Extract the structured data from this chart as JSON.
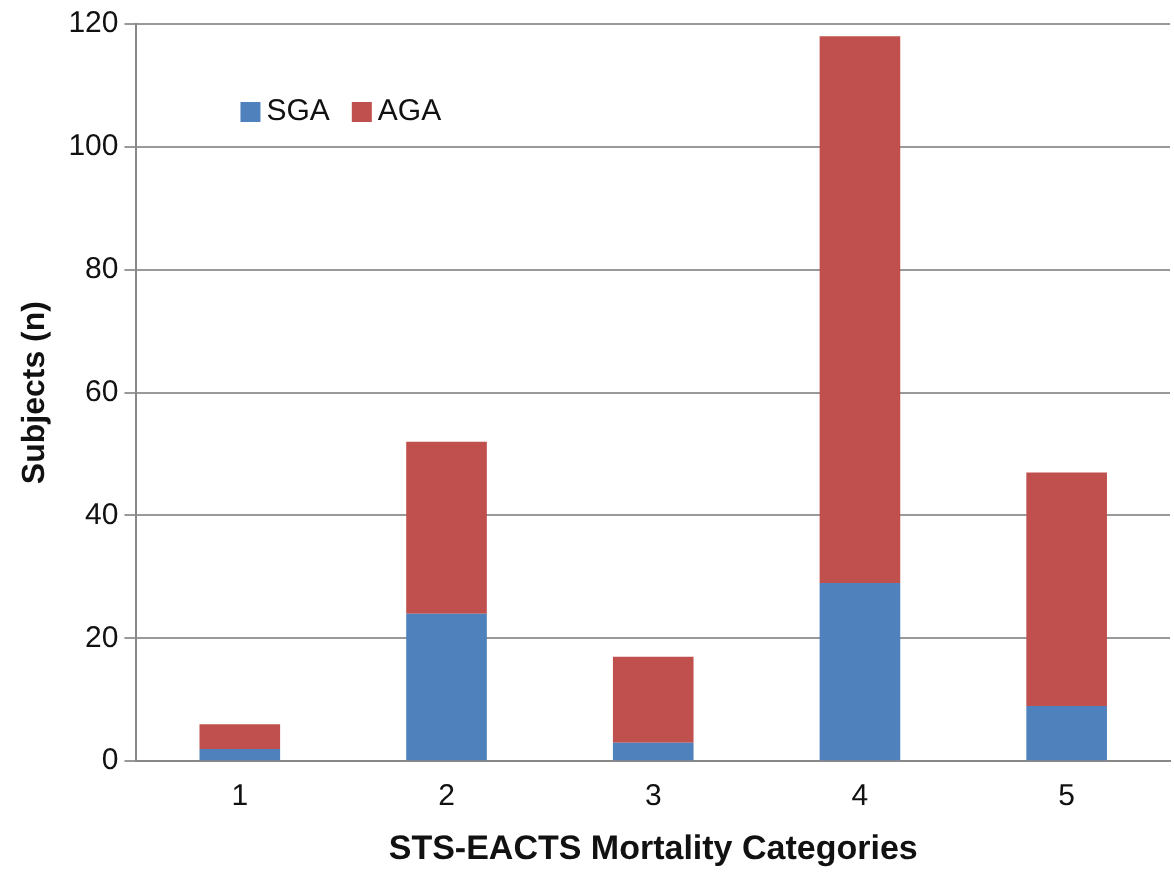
{
  "chart_data": {
    "type": "bar",
    "stacked": true,
    "xlabel": "STS-EACTS Mortality Categories",
    "ylabel": "Subjects (n)",
    "categories": [
      "1",
      "2",
      "3",
      "4",
      "5"
    ],
    "series": [
      {
        "name": "SGA",
        "color": "#4f81bd",
        "values": [
          2,
          24,
          3,
          29,
          9
        ]
      },
      {
        "name": "AGA",
        "color": "#c0504d",
        "values": [
          4,
          28,
          14,
          89,
          38
        ]
      }
    ],
    "ylim": [
      0,
      120
    ],
    "yticks": [
      0,
      20,
      40,
      60,
      80,
      100,
      120
    ],
    "grid": "y",
    "legend": "top left"
  }
}
